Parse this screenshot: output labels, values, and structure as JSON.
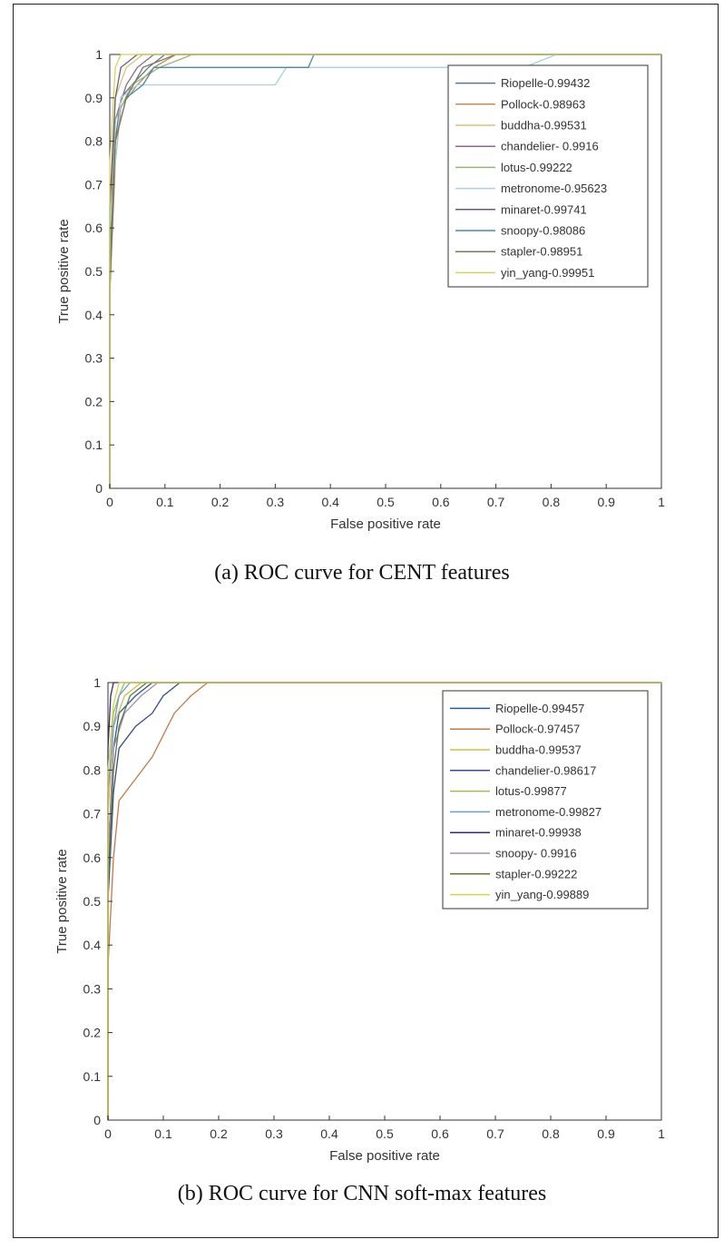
{
  "figures": [
    {
      "caption": "(a) ROC curve for CENT features"
    },
    {
      "caption": "(b) ROC curve for CNN soft-max features"
    }
  ],
  "chart_data": [
    {
      "type": "line",
      "xlabel": "False positive rate",
      "ylabel": "True positive rate",
      "xlim": [
        0,
        1
      ],
      "ylim": [
        0,
        1
      ],
      "x_ticks": [
        "0",
        "0.1",
        "0.2",
        "0.3",
        "0.4",
        "0.5",
        "0.6",
        "0.7",
        "0.8",
        "0.9",
        "1"
      ],
      "y_ticks": [
        "0",
        "0.1",
        "0.2",
        "0.3",
        "0.4",
        "0.5",
        "0.6",
        "0.7",
        "0.8",
        "0.9",
        "1"
      ],
      "grid": false,
      "legend_position": "top-right",
      "series": [
        {
          "name": "Riopelle-0.99432",
          "color": "#5a7896",
          "points": [
            [
              0,
              0
            ],
            [
              0,
              0.5
            ],
            [
              0.01,
              0.8
            ],
            [
              0.02,
              0.9
            ],
            [
              0.04,
              0.93
            ],
            [
              0.07,
              0.97
            ],
            [
              0.1,
              1
            ],
            [
              1,
              1
            ]
          ]
        },
        {
          "name": "Pollock-0.98963",
          "color": "#c08a5a",
          "points": [
            [
              0,
              0
            ],
            [
              0,
              0.45
            ],
            [
              0.01,
              0.75
            ],
            [
              0.02,
              0.88
            ],
            [
              0.05,
              0.93
            ],
            [
              0.08,
              0.97
            ],
            [
              0.12,
              1
            ],
            [
              1,
              1
            ]
          ]
        },
        {
          "name": "buddha-0.99531",
          "color": "#d8c27a",
          "points": [
            [
              0,
              0
            ],
            [
              0,
              0.6
            ],
            [
              0.01,
              0.9
            ],
            [
              0.03,
              0.97
            ],
            [
              0.06,
              1
            ],
            [
              1,
              1
            ]
          ]
        },
        {
          "name": "chandelier- 0.9916",
          "color": "#8a6a8a",
          "points": [
            [
              0,
              0
            ],
            [
              0,
              0.55
            ],
            [
              0.01,
              0.85
            ],
            [
              0.03,
              0.93
            ],
            [
              0.05,
              0.97
            ],
            [
              0.08,
              1
            ],
            [
              1,
              1
            ]
          ]
        },
        {
          "name": "lotus-0.99222",
          "color": "#9ab07a",
          "points": [
            [
              0,
              0
            ],
            [
              0,
              0.5
            ],
            [
              0.01,
              0.85
            ],
            [
              0.04,
              0.93
            ],
            [
              0.09,
              0.97
            ],
            [
              0.15,
              1
            ],
            [
              1,
              1
            ]
          ]
        },
        {
          "name": "metronome-0.95623",
          "color": "#a8d0e0",
          "points": [
            [
              0,
              0
            ],
            [
              0,
              0.6
            ],
            [
              0.02,
              0.9
            ],
            [
              0.05,
              0.93
            ],
            [
              0.3,
              0.93
            ],
            [
              0.32,
              0.97
            ],
            [
              0.75,
              0.97
            ],
            [
              0.81,
              1
            ],
            [
              1,
              1
            ]
          ]
        },
        {
          "name": "minaret-0.99741",
          "color": "#6a5a7a",
          "points": [
            [
              0,
              0
            ],
            [
              0,
              0.65
            ],
            [
              0.01,
              0.9
            ],
            [
              0.02,
              0.97
            ],
            [
              0.05,
              1
            ],
            [
              1,
              1
            ]
          ]
        },
        {
          "name": "snoopy-0.98086",
          "color": "#4a8aa8",
          "points": [
            [
              0,
              0
            ],
            [
              0,
              0.5
            ],
            [
              0.01,
              0.8
            ],
            [
              0.03,
              0.9
            ],
            [
              0.06,
              0.93
            ],
            [
              0.08,
              0.97
            ],
            [
              0.36,
              0.97
            ],
            [
              0.37,
              1
            ],
            [
              1,
              1
            ]
          ]
        },
        {
          "name": "stapler-0.98951",
          "color": "#7a7a5a",
          "points": [
            [
              0,
              0
            ],
            [
              0,
              0.45
            ],
            [
              0.01,
              0.8
            ],
            [
              0.03,
              0.9
            ],
            [
              0.06,
              0.97
            ],
            [
              0.12,
              1
            ],
            [
              1,
              1
            ]
          ]
        },
        {
          "name": "yin_yang-0.99951",
          "color": "#d8d060",
          "points": [
            [
              0,
              0
            ],
            [
              0,
              0.75
            ],
            [
              0.01,
              0.97
            ],
            [
              0.02,
              1
            ],
            [
              1,
              1
            ]
          ]
        }
      ]
    },
    {
      "type": "line",
      "xlabel": "False positive rate",
      "ylabel": "True positive rate",
      "xlim": [
        0,
        1
      ],
      "ylim": [
        0,
        1
      ],
      "x_ticks": [
        "0",
        "0.1",
        "0.2",
        "0.3",
        "0.4",
        "0.5",
        "0.6",
        "0.7",
        "0.8",
        "0.9",
        "1"
      ],
      "y_ticks": [
        "0",
        "0.1",
        "0.2",
        "0.3",
        "0.4",
        "0.5",
        "0.6",
        "0.7",
        "0.8",
        "0.9",
        "1"
      ],
      "grid": false,
      "legend_position": "top-right",
      "series": [
        {
          "name": "Riopelle-0.99457",
          "color": "#2a5a9a",
          "points": [
            [
              0,
              0
            ],
            [
              0,
              0.6
            ],
            [
              0.01,
              0.85
            ],
            [
              0.02,
              0.93
            ],
            [
              0.05,
              0.97
            ],
            [
              0.08,
              1
            ],
            [
              1,
              1
            ]
          ]
        },
        {
          "name": "Pollock-0.97457",
          "color": "#c07a4a",
          "points": [
            [
              0,
              0
            ],
            [
              0,
              0.35
            ],
            [
              0.01,
              0.6
            ],
            [
              0.02,
              0.73
            ],
            [
              0.05,
              0.78
            ],
            [
              0.08,
              0.83
            ],
            [
              0.1,
              0.88
            ],
            [
              0.12,
              0.93
            ],
            [
              0.15,
              0.97
            ],
            [
              0.18,
              1
            ],
            [
              1,
              1
            ]
          ]
        },
        {
          "name": "buddha-0.99537",
          "color": "#d8b84a",
          "points": [
            [
              0,
              0
            ],
            [
              0,
              0.7
            ],
            [
              0.01,
              0.9
            ],
            [
              0.03,
              0.97
            ],
            [
              0.06,
              1
            ],
            [
              1,
              1
            ]
          ]
        },
        {
          "name": "chandelier-0.98617",
          "color": "#3a4a8a",
          "points": [
            [
              0,
              0
            ],
            [
              0,
              0.5
            ],
            [
              0.01,
              0.75
            ],
            [
              0.02,
              0.85
            ],
            [
              0.05,
              0.9
            ],
            [
              0.08,
              0.93
            ],
            [
              0.1,
              0.97
            ],
            [
              0.13,
              1
            ],
            [
              1,
              1
            ]
          ]
        },
        {
          "name": "lotus-0.99877",
          "color": "#9ac05a",
          "points": [
            [
              0,
              0
            ],
            [
              0,
              0.8
            ],
            [
              0.01,
              0.93
            ],
            [
              0.02,
              0.97
            ],
            [
              0.03,
              1
            ],
            [
              1,
              1
            ]
          ]
        },
        {
          "name": "metronome-0.99827",
          "color": "#6aa0c8",
          "points": [
            [
              0,
              0
            ],
            [
              0,
              0.75
            ],
            [
              0.01,
              0.9
            ],
            [
              0.02,
              0.97
            ],
            [
              0.04,
              1
            ],
            [
              1,
              1
            ]
          ]
        },
        {
          "name": "minaret-0.99938",
          "color": "#3a2a6a",
          "points": [
            [
              0,
              0
            ],
            [
              0,
              0.85
            ],
            [
              0.005,
              0.97
            ],
            [
              0.01,
              1
            ],
            [
              1,
              1
            ]
          ]
        },
        {
          "name": "snoopy- 0.9916",
          "color": "#a88ab8",
          "points": [
            [
              0,
              0
            ],
            [
              0,
              0.6
            ],
            [
              0.01,
              0.85
            ],
            [
              0.03,
              0.93
            ],
            [
              0.06,
              0.97
            ],
            [
              0.09,
              1
            ],
            [
              1,
              1
            ]
          ]
        },
        {
          "name": "stapler-0.99222",
          "color": "#5a7a3a",
          "points": [
            [
              0,
              0
            ],
            [
              0,
              0.55
            ],
            [
              0.01,
              0.8
            ],
            [
              0.02,
              0.9
            ],
            [
              0.04,
              0.97
            ],
            [
              0.07,
              1
            ],
            [
              1,
              1
            ]
          ]
        },
        {
          "name": "yin_yang-0.99889",
          "color": "#d8d050",
          "points": [
            [
              0,
              0
            ],
            [
              0,
              0.8
            ],
            [
              0.01,
              0.95
            ],
            [
              0.02,
              1
            ],
            [
              1,
              1
            ]
          ]
        }
      ]
    }
  ]
}
